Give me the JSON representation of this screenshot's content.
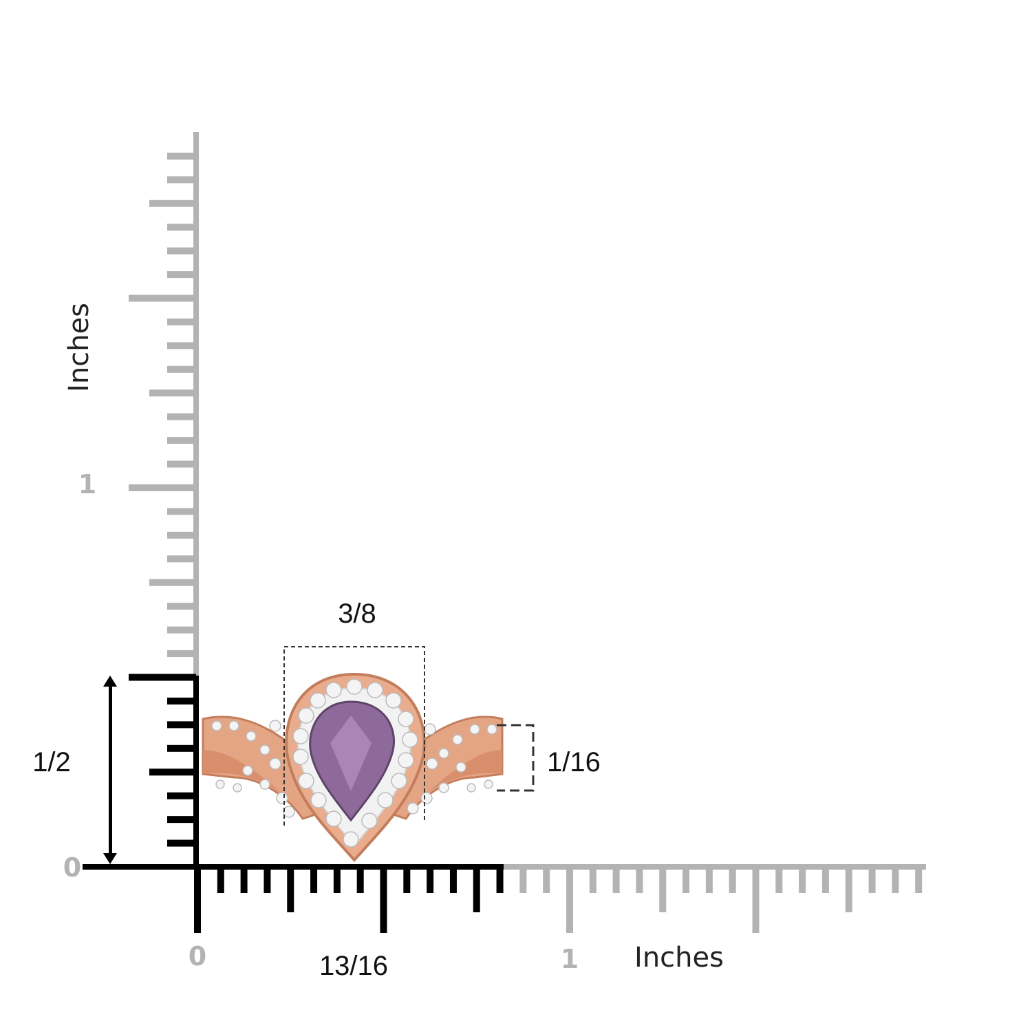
{
  "rulers": {
    "vertical": {
      "title": "Inches",
      "labels": [
        "1",
        "0"
      ]
    },
    "horizontal": {
      "title": "Inches",
      "labels": [
        "0",
        "1"
      ]
    }
  },
  "dimensions": {
    "top_width": "3/8",
    "band_height": "1/16",
    "overall_height": "1/2",
    "overall_width": "13/16"
  }
}
